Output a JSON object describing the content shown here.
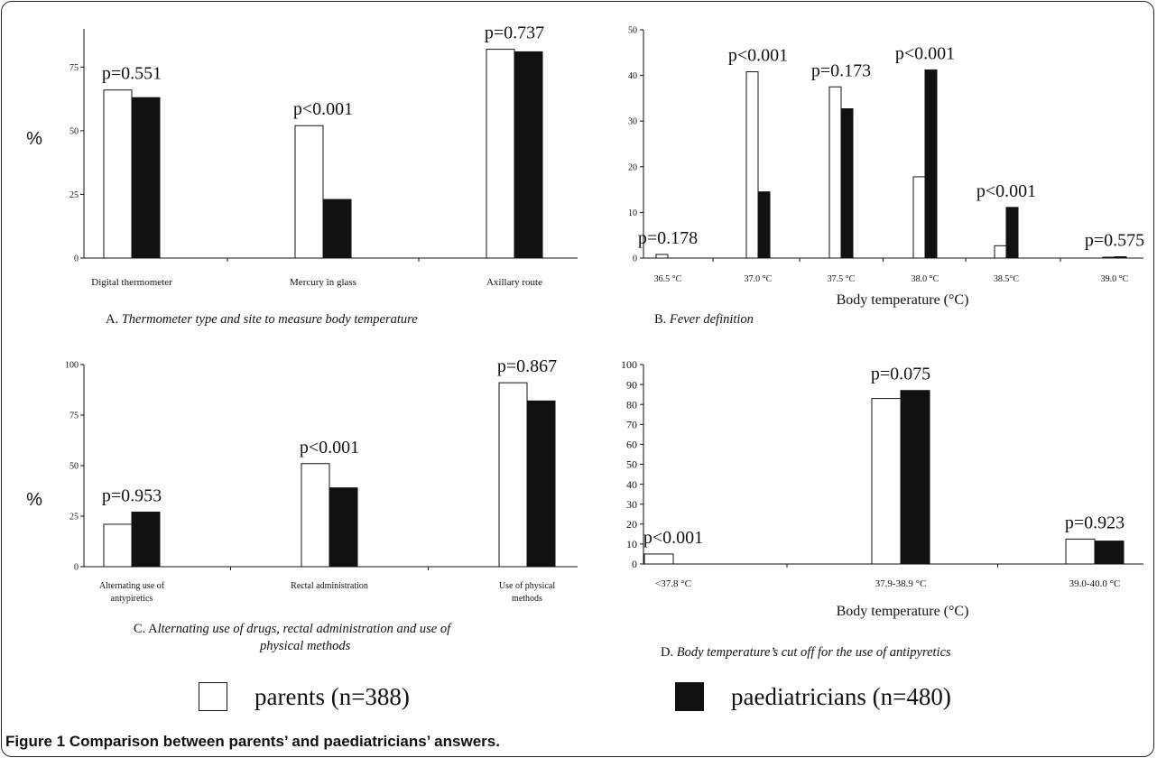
{
  "figure_caption": "Figure 1 Comparison between parents’ and paediatricians’ answers.",
  "legend": [
    {
      "label": "parents (n=388)",
      "color": "#ffffff"
    },
    {
      "label": "paediatricians (n=480)",
      "color": "#111111"
    }
  ],
  "chart_data": [
    {
      "id": "A",
      "type": "bar",
      "caption_prefix": "A. ",
      "caption": "Thermometer type and site to measure body temperature",
      "ylabel": "%",
      "xlabel": "",
      "ylim": [
        0,
        90
      ],
      "yticks": [
        0,
        25,
        50,
        75
      ],
      "categories": [
        "Digital thermometer",
        "Mercury in glass",
        "Axillary route"
      ],
      "category_lines": [
        [
          "Digital thermometer"
        ],
        [
          "Mercury in glass"
        ],
        [
          "Axillary route"
        ]
      ],
      "pvalues": [
        "p=0.551",
        "p<0.001",
        "p=0.737"
      ],
      "series": [
        {
          "name": "parents (n=388)",
          "values": [
            66,
            52,
            82
          ]
        },
        {
          "name": "paediatricians (n=480)",
          "values": [
            63,
            23,
            81
          ]
        }
      ],
      "grid": false
    },
    {
      "id": "B",
      "type": "bar",
      "caption_prefix": "B. ",
      "caption": "Fever definition",
      "ylabel": "",
      "xlabel": "Body temperature (°C)",
      "ylim": [
        0,
        50
      ],
      "yticks": [
        0,
        10,
        20,
        30,
        40,
        50
      ],
      "categories": [
        "36.5 °C",
        "37.0 °C",
        "37.5 °C",
        "38.0 °C",
        "38.5°C",
        "39.0 °C"
      ],
      "category_lines": [
        [
          "36.5 °C"
        ],
        [
          "37.0 °C"
        ],
        [
          "37.5 °C"
        ],
        [
          "38.0 °C"
        ],
        [
          "38.5°C"
        ],
        [
          "39.0 °C"
        ]
      ],
      "pvalues": [
        "p=0.178",
        "p<0.001",
        "p=0.173",
        "p<0.001",
        "p<0.001",
        "p=0.575"
      ],
      "series": [
        {
          "name": "parents (n=388)",
          "values": [
            0.8,
            40.8,
            37.5,
            17.8,
            2.7,
            0.2
          ]
        },
        {
          "name": "paediatricians (n=480)",
          "values": [
            0,
            14.5,
            32.7,
            41.2,
            11.1,
            0.3
          ]
        }
      ],
      "grid": false
    },
    {
      "id": "C",
      "type": "bar",
      "caption_prefix": "C. A",
      "caption": "lternating use of  drugs, rectal administration and  use of physical methods",
      "caption_lines": [
        "lternating use of  drugs, rectal administration and  use of",
        "physical methods"
      ],
      "ylabel": "%",
      "xlabel": "",
      "ylim": [
        0,
        100
      ],
      "yticks": [
        0,
        25,
        50,
        75,
        100
      ],
      "categories": [
        "Alternating use of antypiretics",
        "Rectal administration",
        "Use of physical methods"
      ],
      "category_lines": [
        [
          "Alternating use of",
          "antypiretics"
        ],
        [
          "Rectal administration"
        ],
        [
          "Use of physical",
          "methods"
        ]
      ],
      "pvalues": [
        "p=0.953",
        "p<0.001",
        "p=0.867"
      ],
      "series": [
        {
          "name": "parents (n=388)",
          "values": [
            21,
            51,
            91
          ]
        },
        {
          "name": "paediatricians (n=480)",
          "values": [
            27,
            39,
            82
          ]
        }
      ],
      "grid": false
    },
    {
      "id": "D",
      "type": "bar",
      "caption_prefix": "D. ",
      "caption": "Body temperature’s cut off for the use of antipyretics",
      "ylabel": "",
      "xlabel": "Body temperature (°C)",
      "ylim": [
        0,
        100
      ],
      "yticks": [
        0,
        10,
        20,
        30,
        40,
        50,
        60,
        70,
        80,
        90,
        100
      ],
      "categories": [
        "<37.8 °C",
        "37.9-38.9 °C",
        "39.0-40.0 °C"
      ],
      "category_lines": [
        [
          "<37.8 °C"
        ],
        [
          "37.9-38.9 °C"
        ],
        [
          "39.0-40.0 °C"
        ]
      ],
      "pvalues": [
        "p<0.001",
        "p=0.075",
        "p=0.923"
      ],
      "series": [
        {
          "name": "parents (n=388)",
          "values": [
            5,
            83,
            12.5
          ]
        },
        {
          "name": "paediatricians (n=480)",
          "values": [
            0,
            87,
            11.5
          ]
        }
      ],
      "grid": false
    }
  ]
}
